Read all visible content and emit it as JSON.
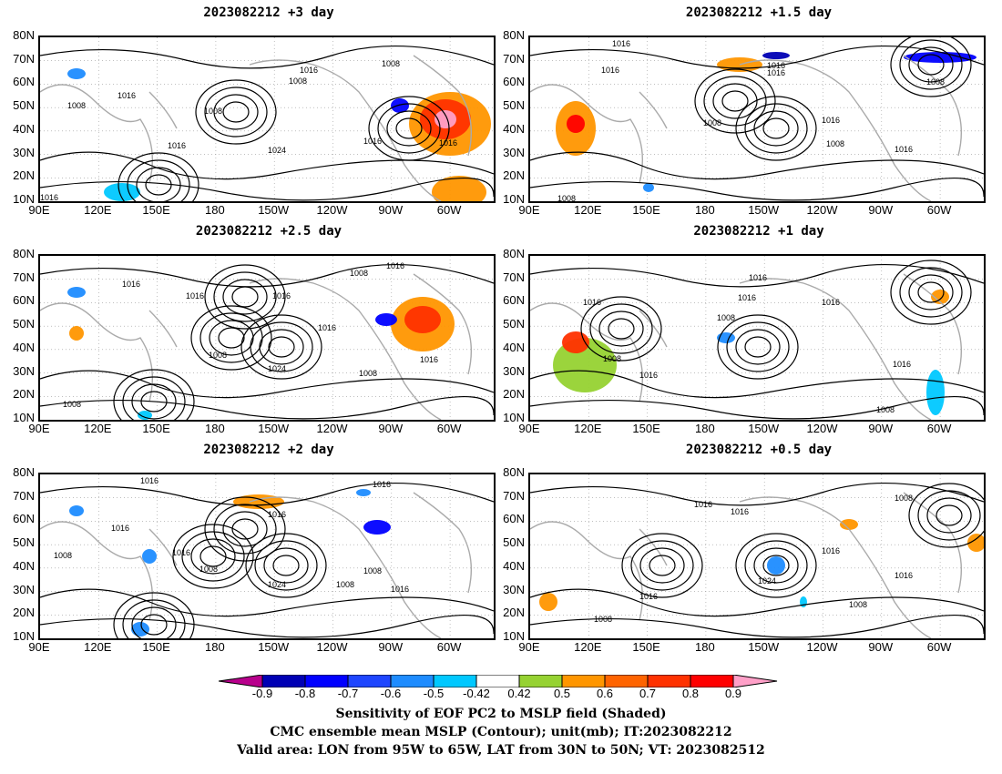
{
  "panels": [
    {
      "title": "2023082212 +3 day",
      "contour_labels": [
        "1008",
        "1016",
        "1016",
        "1008",
        "1016",
        "1024",
        "1016",
        "1016",
        "1008",
        "1016",
        "1008"
      ]
    },
    {
      "title": "2023082212 +1.5 day",
      "contour_labels": [
        "1016",
        "1016",
        "1016",
        "1016",
        "1008",
        "1016",
        "1008",
        "1016",
        "1008",
        "1008"
      ]
    },
    {
      "title": "2023082212 +2.5 day",
      "contour_labels": [
        "1016",
        "1016",
        "1008",
        "1016",
        "1016",
        "1008",
        "1024",
        "1016",
        "1008",
        "1016",
        "1008"
      ]
    },
    {
      "title": "2023082212 +1 day",
      "contour_labels": [
        "1016",
        "1016",
        "1016",
        "1016",
        "1008",
        "1008",
        "1016",
        "1016",
        "1008"
      ]
    },
    {
      "title": "2023082212 +2 day",
      "contour_labels": [
        "1016",
        "1016",
        "1008",
        "1016",
        "1008",
        "1016",
        "1008",
        "1024",
        "1008",
        "1016",
        "1016"
      ]
    },
    {
      "title": "2023082212 +0.5 day",
      "contour_labels": [
        "1016",
        "1016",
        "1008",
        "1016",
        "1024",
        "1016",
        "1008",
        "1016",
        "1008"
      ]
    }
  ],
  "axes": {
    "lat_labels": [
      "80N",
      "70N",
      "60N",
      "50N",
      "40N",
      "30N",
      "20N",
      "10N"
    ],
    "lon_labels": [
      "90E",
      "120E",
      "150E",
      "180",
      "150W",
      "120W",
      "90W",
      "60W"
    ]
  },
  "colorbar": {
    "levels": [
      "-0.9",
      "-0.8",
      "-0.7",
      "-0.6",
      "-0.5",
      "-0.42",
      "0.42",
      "0.5",
      "0.6",
      "0.7",
      "0.8",
      "0.9"
    ],
    "colors": [
      "#b8008c",
      "#0000b4",
      "#0000ff",
      "#1e46ff",
      "#1e8cff",
      "#00c8ff",
      "#ffffff",
      "#96d232",
      "#ff9600",
      "#ff6400",
      "#ff3200",
      "#ff0000",
      "#ffa0c8"
    ]
  },
  "caption": {
    "line1": "Sensitivity of EOF PC2 to MSLP field (Shaded)",
    "line2": "CMC ensemble mean MSLP (Contour); unit(mb); IT:2023082212",
    "line3": "Valid area: LON from 95W to 65W, LAT from 30N to 50N; VT: 2023082512"
  }
}
